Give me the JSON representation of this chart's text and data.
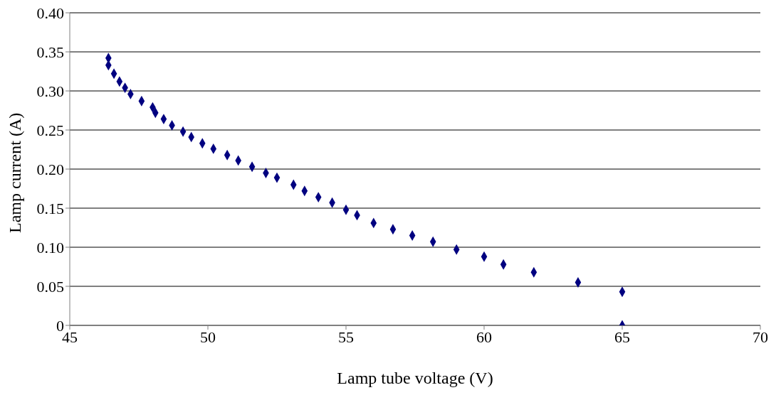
{
  "chart_data": {
    "type": "scatter",
    "xlabel": "Lamp tube voltage (V)",
    "ylabel": "Lamp current (A)",
    "x": [
      46.4,
      46.4,
      46.6,
      46.8,
      47.0,
      47.2,
      47.6,
      48.0,
      48.1,
      48.4,
      48.7,
      49.1,
      49.4,
      49.8,
      50.2,
      50.7,
      51.1,
      51.6,
      52.1,
      52.5,
      53.1,
      53.5,
      54.0,
      54.5,
      55.0,
      55.4,
      56.0,
      56.7,
      57.4,
      58.15,
      59.0,
      60.0,
      60.7,
      61.8,
      63.4,
      65.0,
      65.0
    ],
    "values": [
      0.342,
      0.333,
      0.322,
      0.312,
      0.304,
      0.296,
      0.287,
      0.279,
      0.272,
      0.264,
      0.256,
      0.248,
      0.241,
      0.233,
      0.226,
      0.218,
      0.211,
      0.203,
      0.195,
      0.189,
      0.18,
      0.172,
      0.164,
      0.157,
      0.148,
      0.141,
      0.131,
      0.123,
      0.115,
      0.107,
      0.097,
      0.088,
      0.078,
      0.068,
      0.055,
      0.043,
      0
    ],
    "color": "#000080",
    "marker": "diamond",
    "xlim": [
      45,
      70
    ],
    "xticks": [
      45,
      50,
      55,
      60,
      65,
      70
    ],
    "ylim": [
      0,
      0.4
    ],
    "yticks": [
      0,
      {
        "value": 0.05,
        "label": "0.05"
      },
      {
        "value": 0.1,
        "label": "0.10"
      },
      {
        "value": 0.15,
        "label": "0.15"
      },
      {
        "value": 0.2,
        "label": "0.20"
      },
      {
        "value": 0.25,
        "label": "0.25"
      },
      {
        "value": 0.3,
        "label": "0.30"
      },
      {
        "value": 0.35,
        "label": "0.35"
      },
      {
        "value": 0.4,
        "label": "0.40"
      }
    ],
    "grid": "y"
  }
}
